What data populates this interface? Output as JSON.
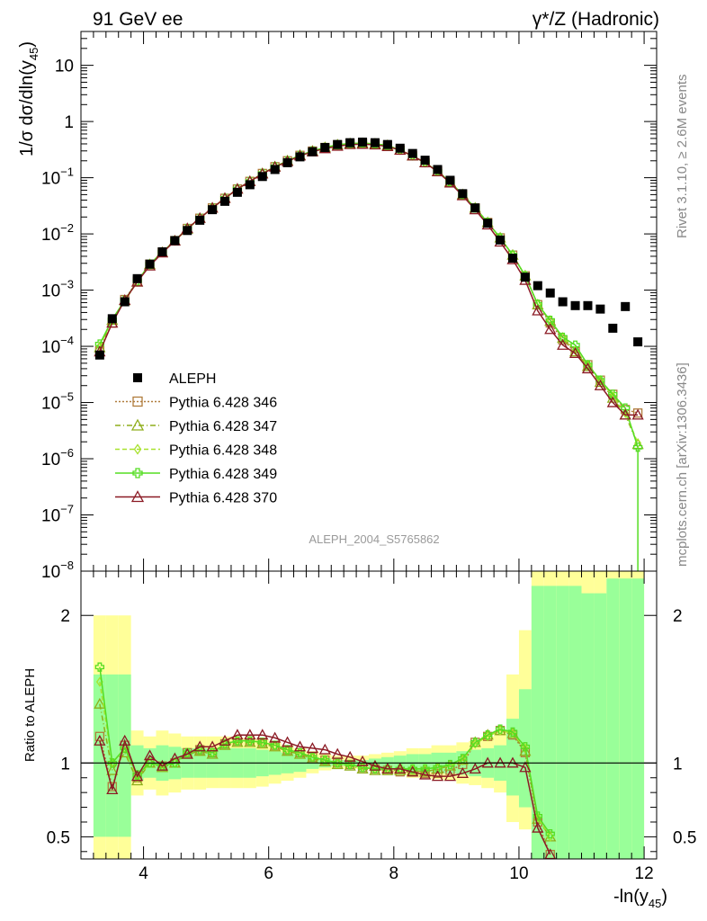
{
  "header": {
    "left_title": "91 GeV ee",
    "right_title": "γ*/Z (Hadronic)"
  },
  "side_labels": {
    "rivet": "Rivet 3.1.10, ≥ 2.6M events",
    "mcplots": "mcplots.cern.ch [arXiv:1306.3436]"
  },
  "watermark": "ALEPH_2004_S5765862",
  "colors": {
    "data": "#000000",
    "p346": "#b07c3c",
    "p347": "#8fae1b",
    "p348": "#a8e22e",
    "p349": "#55dd22",
    "p370": "#8b1a24",
    "band_yellow": "#ffff99",
    "band_green": "#99ff99"
  },
  "chart_data": [
    {
      "type": "scatter",
      "panel": "main",
      "xlabel_main": "-ln(y",
      "xlabel_sub": "45",
      "xlabel_close": ")",
      "ylabel_main": "1/σ  dσ/dln(y",
      "ylabel_sub": "45",
      "ylabel_close": ")",
      "log_y": true,
      "xlim": [
        3.0,
        12.2
      ],
      "ylim": [
        1e-08,
        40
      ],
      "x_ticks": [
        4,
        6,
        8,
        10,
        12
      ],
      "y_ticks": [
        {
          "v": 1e-08,
          "m": "10",
          "e": "−8"
        },
        {
          "v": 1e-07,
          "m": "10",
          "e": "−7"
        },
        {
          "v": 1e-06,
          "m": "10",
          "e": "−6"
        },
        {
          "v": 1e-05,
          "m": "10",
          "e": "−5"
        },
        {
          "v": 0.0001,
          "m": "10",
          "e": "−4"
        },
        {
          "v": 0.001,
          "m": "10",
          "e": "−3"
        },
        {
          "v": 0.01,
          "m": "10",
          "e": "−2"
        },
        {
          "v": 0.1,
          "m": "10",
          "e": "−1"
        },
        {
          "v": 1,
          "m": "1",
          "e": ""
        },
        {
          "v": 10,
          "m": "10",
          "e": ""
        }
      ],
      "x": [
        3.3,
        3.5,
        3.7,
        3.9,
        4.1,
        4.3,
        4.5,
        4.7,
        4.9,
        5.1,
        5.3,
        5.5,
        5.7,
        5.9,
        6.1,
        6.3,
        6.5,
        6.7,
        6.9,
        7.1,
        7.3,
        7.5,
        7.7,
        7.9,
        8.1,
        8.3,
        8.5,
        8.7,
        8.9,
        9.1,
        9.3,
        9.5,
        9.7,
        9.9,
        10.1,
        10.3,
        10.5,
        10.7,
        10.9,
        11.1,
        11.3,
        11.5,
        11.7,
        11.9
      ],
      "series": [
        {
          "name": "ALEPH",
          "marker": "square_filled",
          "values": [
            7e-05,
            0.00031,
            0.00062,
            0.0016,
            0.0029,
            0.0048,
            0.0076,
            0.0115,
            0.0175,
            0.027,
            0.038,
            0.055,
            0.075,
            0.105,
            0.14,
            0.185,
            0.235,
            0.29,
            0.345,
            0.39,
            0.42,
            0.43,
            0.42,
            0.39,
            0.335,
            0.27,
            0.205,
            0.14,
            0.09,
            0.052,
            0.029,
            0.0155,
            0.0078,
            0.0037,
            0.0017,
            0.0012,
            0.00089,
            0.00062,
            0.00053,
            0.00053,
            0.00046,
            0.00021,
            0.00051,
            0.00012
          ]
        },
        {
          "name": "Pythia 6.428 346",
          "marker": "square_open",
          "dash": "2,2",
          "values": [
            8.3e-05,
            0.00026,
            0.00068,
            0.00145,
            0.0029,
            0.00475,
            0.0076,
            0.0125,
            0.019,
            0.029,
            0.043,
            0.063,
            0.086,
            0.119,
            0.157,
            0.2,
            0.25,
            0.298,
            0.345,
            0.385,
            0.405,
            0.41,
            0.4,
            0.375,
            0.31,
            0.245,
            0.185,
            0.13,
            0.084,
            0.05,
            0.029,
            0.016,
            0.0085,
            0.0042,
            0.0018,
            0.00055,
            0.00026,
            0.00013,
            8e-05,
            4.7e-05,
            2.5e-05,
            1.4e-05,
            7.5e-06,
            6.5e-06
          ]
        },
        {
          "name": "Pythia 6.428 347",
          "marker": "triangle_open",
          "dash": "6,3,1,3",
          "values": [
            9.5e-05,
            0.00029,
            0.00065,
            0.0014,
            0.00285,
            0.0047,
            0.0075,
            0.0122,
            0.019,
            0.029,
            0.043,
            0.063,
            0.086,
            0.119,
            0.157,
            0.2,
            0.25,
            0.298,
            0.345,
            0.385,
            0.405,
            0.41,
            0.4,
            0.375,
            0.31,
            0.245,
            0.185,
            0.13,
            0.084,
            0.05,
            0.029,
            0.016,
            0.0085,
            0.0042,
            0.0018,
            0.00055,
            0.00028,
            0.00014,
            8e-05,
            4.4e-05,
            2.3e-05,
            1.2e-05,
            6e-06,
            1.8e-06
          ]
        },
        {
          "name": "Pythia 6.428 348",
          "marker": "diamond_open",
          "dash": "5,3",
          "values": [
            0.0001,
            0.0003,
            0.00065,
            0.0014,
            0.00285,
            0.0047,
            0.0075,
            0.0122,
            0.019,
            0.029,
            0.043,
            0.063,
            0.086,
            0.119,
            0.157,
            0.2,
            0.25,
            0.298,
            0.345,
            0.385,
            0.405,
            0.41,
            0.4,
            0.375,
            0.31,
            0.245,
            0.185,
            0.13,
            0.084,
            0.05,
            0.029,
            0.016,
            0.0085,
            0.0042,
            0.0018,
            0.00056,
            0.00029,
            0.000145,
            8.5e-05,
            4.7e-05,
            2.5e-05,
            1.3e-05,
            6.5e-06,
            1.9e-06
          ]
        },
        {
          "name": "Pythia 6.428 349",
          "marker": "cross_open",
          "dash": "",
          "values": [
            0.00011,
            0.0003,
            0.00066,
            0.00145,
            0.0029,
            0.00475,
            0.0076,
            0.0125,
            0.019,
            0.029,
            0.043,
            0.063,
            0.086,
            0.119,
            0.157,
            0.2,
            0.25,
            0.298,
            0.345,
            0.385,
            0.405,
            0.41,
            0.4,
            0.375,
            0.31,
            0.245,
            0.185,
            0.13,
            0.084,
            0.05,
            0.029,
            0.016,
            0.0085,
            0.0042,
            0.0018,
            0.00056,
            0.00029,
            0.000145,
            0.000105,
            4.7e-05,
            2.5e-05,
            1.4e-05,
            8e-06,
            1.6e-06
          ]
        },
        {
          "name": "Pythia 6.428 370",
          "marker": "triangle_open",
          "dash": "",
          "values": [
            8e-05,
            0.00026,
            0.00066,
            0.0014,
            0.0027,
            0.0046,
            0.0075,
            0.0125,
            0.019,
            0.029,
            0.043,
            0.063,
            0.086,
            0.117,
            0.155,
            0.195,
            0.245,
            0.29,
            0.33,
            0.365,
            0.39,
            0.395,
            0.385,
            0.36,
            0.31,
            0.245,
            0.185,
            0.128,
            0.081,
            0.048,
            0.027,
            0.0145,
            0.0072,
            0.0035,
            0.0015,
            0.00043,
            0.0002,
            0.000105,
            7.5e-05,
            4e-05,
            2e-05,
            1e-05,
            6e-06,
            6e-06
          ]
        }
      ]
    },
    {
      "type": "line",
      "panel": "ratio",
      "ylabel": "Ratio to ALEPH",
      "xlim": [
        3.0,
        12.2
      ],
      "ylim": [
        0.35,
        2.3
      ],
      "y_ticks": [
        0.5,
        1,
        2
      ],
      "y_tick_labels": [
        "0.5",
        "1",
        "2"
      ],
      "x": [
        3.3,
        3.5,
        3.7,
        3.9,
        4.1,
        4.3,
        4.5,
        4.7,
        4.9,
        5.1,
        5.3,
        5.5,
        5.7,
        5.9,
        6.1,
        6.3,
        6.5,
        6.7,
        6.9,
        7.1,
        7.3,
        7.5,
        7.7,
        7.9,
        8.1,
        8.3,
        8.5,
        8.7,
        8.9,
        9.1,
        9.3,
        9.5,
        9.7,
        9.9,
        10.1,
        10.3,
        10.5
      ],
      "band_yellow": [
        [
          0.3,
          2.0
        ],
        [
          0.3,
          2.0
        ],
        [
          0.3,
          2.0
        ],
        [
          0.78,
          1.22
        ],
        [
          0.82,
          1.18
        ],
        [
          0.78,
          1.22
        ],
        [
          0.8,
          1.2
        ],
        [
          0.82,
          1.18
        ],
        [
          0.82,
          1.18
        ],
        [
          0.83,
          1.18
        ],
        [
          0.83,
          1.18
        ],
        [
          0.83,
          1.17
        ],
        [
          0.83,
          1.17
        ],
        [
          0.84,
          1.16
        ],
        [
          0.86,
          1.14
        ],
        [
          0.88,
          1.12
        ],
        [
          0.9,
          1.1
        ],
        [
          0.93,
          1.08
        ],
        [
          0.95,
          1.06
        ],
        [
          0.96,
          1.05
        ],
        [
          0.96,
          1.05
        ],
        [
          0.96,
          1.05
        ],
        [
          0.95,
          1.06
        ],
        [
          0.93,
          1.07
        ],
        [
          0.92,
          1.08
        ],
        [
          0.9,
          1.1
        ],
        [
          0.9,
          1.1
        ],
        [
          0.89,
          1.12
        ],
        [
          0.88,
          1.12
        ],
        [
          0.86,
          1.14
        ],
        [
          0.85,
          1.15
        ],
        [
          0.83,
          1.18
        ],
        [
          0.8,
          1.22
        ],
        [
          0.6,
          1.6
        ],
        [
          0.55,
          1.9
        ],
        [
          0.35,
          2.3
        ],
        [
          0.35,
          2.3
        ]
      ],
      "band_green": [
        [
          0.5,
          1.6
        ],
        [
          0.5,
          1.6
        ],
        [
          0.5,
          1.6
        ],
        [
          0.88,
          1.12
        ],
        [
          0.9,
          1.1
        ],
        [
          0.88,
          1.12
        ],
        [
          0.89,
          1.11
        ],
        [
          0.9,
          1.1
        ],
        [
          0.9,
          1.1
        ],
        [
          0.9,
          1.1
        ],
        [
          0.9,
          1.1
        ],
        [
          0.9,
          1.1
        ],
        [
          0.9,
          1.1
        ],
        [
          0.91,
          1.09
        ],
        [
          0.92,
          1.08
        ],
        [
          0.93,
          1.07
        ],
        [
          0.94,
          1.06
        ],
        [
          0.96,
          1.04
        ],
        [
          0.97,
          1.03
        ],
        [
          0.98,
          1.02
        ],
        [
          0.98,
          1.02
        ],
        [
          0.98,
          1.02
        ],
        [
          0.97,
          1.03
        ],
        [
          0.96,
          1.04
        ],
        [
          0.95,
          1.05
        ],
        [
          0.94,
          1.06
        ],
        [
          0.94,
          1.06
        ],
        [
          0.93,
          1.07
        ],
        [
          0.93,
          1.07
        ],
        [
          0.92,
          1.08
        ],
        [
          0.91,
          1.09
        ],
        [
          0.9,
          1.1
        ],
        [
          0.88,
          1.12
        ],
        [
          0.78,
          1.3
        ],
        [
          0.7,
          1.5
        ],
        [
          0.35,
          2.2
        ],
        [
          0.35,
          2.2
        ]
      ],
      "series": [
        {
          "name": "Pythia 6.428 346",
          "values": [
            1.18,
            0.84,
            1.12,
            0.9,
            1.0,
            0.98,
            1.0,
            1.07,
            1.09,
            1.07,
            1.13,
            1.15,
            1.15,
            1.14,
            1.12,
            1.09,
            1.07,
            1.04,
            1.02,
            1.0,
            0.99,
            0.97,
            0.96,
            0.95,
            0.94,
            0.94,
            0.93,
            0.93,
            0.95,
            0.99,
            1.14,
            1.18,
            1.22,
            1.19,
            1.07,
            0.6,
            0.38
          ]
        },
        {
          "name": "Pythia 6.428 347",
          "values": [
            1.4,
            0.95,
            1.07,
            0.88,
            1.0,
            0.97,
            1.0,
            1.06,
            1.08,
            1.06,
            1.12,
            1.14,
            1.14,
            1.13,
            1.11,
            1.08,
            1.06,
            1.03,
            1.01,
            0.99,
            0.98,
            0.96,
            0.95,
            0.95,
            0.95,
            0.95,
            0.94,
            0.96,
            0.98,
            1.02,
            1.14,
            1.19,
            1.22,
            1.2,
            1.08,
            0.62,
            0.5
          ]
        },
        {
          "name": "Pythia 6.428 348",
          "values": [
            1.55,
            1.0,
            1.1,
            0.9,
            1.0,
            0.98,
            1.0,
            1.07,
            1.09,
            1.07,
            1.13,
            1.15,
            1.15,
            1.14,
            1.12,
            1.09,
            1.07,
            1.04,
            1.02,
            1.0,
            0.99,
            0.97,
            0.96,
            0.96,
            0.96,
            0.96,
            0.96,
            0.97,
            0.98,
            1.02,
            1.13,
            1.18,
            1.22,
            1.2,
            1.1,
            0.63,
            0.5
          ]
        },
        {
          "name": "Pythia 6.428 349",
          "values": [
            1.65,
            1.0,
            1.1,
            0.92,
            1.0,
            0.98,
            1.0,
            1.07,
            1.09,
            1.07,
            1.13,
            1.15,
            1.15,
            1.14,
            1.12,
            1.09,
            1.07,
            1.04,
            1.02,
            1.0,
            0.99,
            0.97,
            0.96,
            0.96,
            0.96,
            0.96,
            0.96,
            0.97,
            0.99,
            1.03,
            1.14,
            1.19,
            1.23,
            1.21,
            1.11,
            0.64,
            0.52
          ]
        },
        {
          "name": "Pythia 6.428 370",
          "values": [
            1.15,
            0.82,
            1.15,
            0.91,
            1.05,
            0.98,
            1.03,
            1.06,
            1.11,
            1.11,
            1.15,
            1.19,
            1.19,
            1.19,
            1.17,
            1.14,
            1.11,
            1.1,
            1.09,
            1.06,
            1.04,
            1.01,
            0.98,
            0.96,
            0.96,
            0.94,
            0.92,
            0.91,
            0.91,
            0.93,
            0.96,
            1.0,
            1.0,
            1.0,
            0.97,
            0.56,
            0.38
          ]
        }
      ]
    }
  ]
}
